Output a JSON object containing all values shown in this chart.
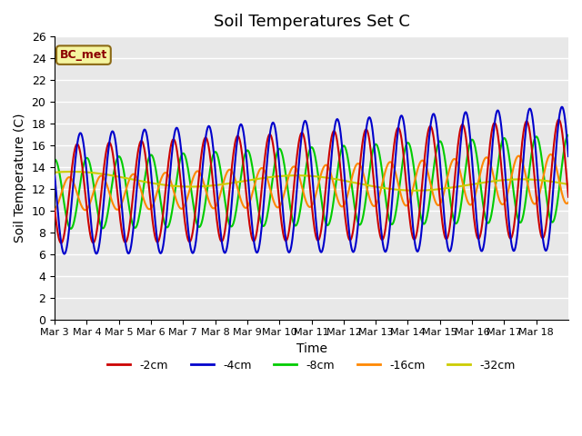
{
  "title": "Soil Temperatures Set C",
  "xlabel": "Time",
  "ylabel": "Soil Temperature (C)",
  "ylim": [
    0,
    26
  ],
  "yticks": [
    0,
    2,
    4,
    6,
    8,
    10,
    12,
    14,
    16,
    18,
    20,
    22,
    24,
    26
  ],
  "x_labels": [
    "Mar 3",
    "Mar 4",
    "Mar 5",
    "Mar 6",
    "Mar 7",
    "Mar 8",
    "Mar 9",
    "Mar 10",
    "Mar 11",
    "Mar 12",
    "Mar 13",
    "Mar 14",
    "Mar 15",
    "Mar 16",
    "Mar 17",
    "Mar 18"
  ],
  "series_colors": {
    "-2cm": "#cc0000",
    "-4cm": "#0000cc",
    "-8cm": "#00cc00",
    "-16cm": "#ff8800",
    "-32cm": "#cccc00"
  },
  "series_lw": 1.5,
  "bg_color": "#e8e8e8",
  "legend_label": "BC_met",
  "days": 16
}
